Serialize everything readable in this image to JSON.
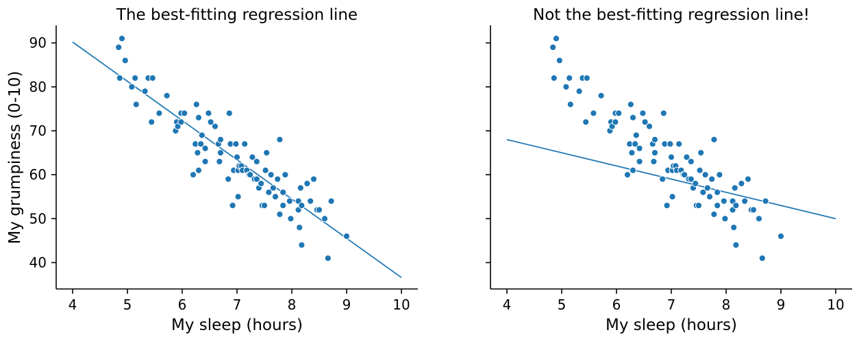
{
  "colors": {
    "accent": "#1f77b4"
  },
  "chart_data": [
    {
      "type": "scatter",
      "title": "The best-fitting regression line",
      "xlabel": "My sleep (hours)",
      "ylabel": "My grumpiness (0-10)",
      "xlim": [
        3.7,
        10.3
      ],
      "ylim": [
        34,
        94
      ],
      "xticks": [
        4,
        5,
        6,
        7,
        8,
        9,
        10
      ],
      "yticks": [
        40,
        50,
        60,
        70,
        80,
        90
      ],
      "grid": false,
      "points": [
        [
          4.84,
          89
        ],
        [
          4.9,
          91
        ],
        [
          4.96,
          86
        ],
        [
          4.86,
          82
        ],
        [
          5.08,
          80
        ],
        [
          5.14,
          82
        ],
        [
          5.16,
          76
        ],
        [
          5.32,
          79
        ],
        [
          5.38,
          82
        ],
        [
          5.44,
          72
        ],
        [
          5.46,
          82
        ],
        [
          5.58,
          74
        ],
        [
          5.72,
          78
        ],
        [
          5.88,
          70
        ],
        [
          5.9,
          72
        ],
        [
          5.92,
          71
        ],
        [
          5.98,
          74
        ],
        [
          5.98,
          72
        ],
        [
          6.04,
          74
        ],
        [
          6.2,
          60
        ],
        [
          6.24,
          67
        ],
        [
          6.26,
          76
        ],
        [
          6.28,
          65
        ],
        [
          6.3,
          73
        ],
        [
          6.3,
          61
        ],
        [
          6.34,
          67
        ],
        [
          6.36,
          69
        ],
        [
          6.42,
          66
        ],
        [
          6.42,
          63
        ],
        [
          6.48,
          74
        ],
        [
          6.52,
          72
        ],
        [
          6.6,
          71
        ],
        [
          6.66,
          67
        ],
        [
          6.68,
          63
        ],
        [
          6.7,
          68
        ],
        [
          6.7,
          65
        ],
        [
          6.84,
          59
        ],
        [
          6.86,
          74
        ],
        [
          6.88,
          67
        ],
        [
          6.92,
          53
        ],
        [
          6.94,
          61
        ],
        [
          6.98,
          67
        ],
        [
          7.0,
          64
        ],
        [
          7.02,
          61
        ],
        [
          7.02,
          55
        ],
        [
          7.04,
          62
        ],
        [
          7.08,
          62
        ],
        [
          7.1,
          61
        ],
        [
          7.14,
          67
        ],
        [
          7.18,
          61
        ],
        [
          7.22,
          60
        ],
        [
          7.24,
          60
        ],
        [
          7.28,
          64
        ],
        [
          7.32,
          59
        ],
        [
          7.36,
          63
        ],
        [
          7.36,
          59
        ],
        [
          7.4,
          57
        ],
        [
          7.44,
          58
        ],
        [
          7.46,
          53
        ],
        [
          7.5,
          53
        ],
        [
          7.52,
          61
        ],
        [
          7.54,
          65
        ],
        [
          7.58,
          56
        ],
        [
          7.62,
          60
        ],
        [
          7.66,
          57
        ],
        [
          7.7,
          55
        ],
        [
          7.74,
          59
        ],
        [
          7.78,
          68
        ],
        [
          7.78,
          51
        ],
        [
          7.84,
          53
        ],
        [
          7.84,
          56
        ],
        [
          7.88,
          60
        ],
        [
          7.96,
          54
        ],
        [
          7.98,
          50
        ],
        [
          8.12,
          54
        ],
        [
          8.12,
          52
        ],
        [
          8.14,
          48
        ],
        [
          8.16,
          57
        ],
        [
          8.18,
          53
        ],
        [
          8.18,
          44
        ],
        [
          8.28,
          58
        ],
        [
          8.34,
          54
        ],
        [
          8.4,
          59
        ],
        [
          8.46,
          52
        ],
        [
          8.5,
          52
        ],
        [
          8.6,
          50
        ],
        [
          8.66,
          41
        ],
        [
          8.72,
          54
        ],
        [
          9.0,
          46
        ]
      ],
      "line": {
        "x": [
          4,
          10
        ],
        "y": [
          90.2,
          36.6
        ]
      }
    },
    {
      "type": "scatter",
      "title": "Not the best-fitting regression line!",
      "xlabel": "My sleep (hours)",
      "ylabel": "",
      "xlim": [
        3.7,
        10.3
      ],
      "ylim": [
        34,
        94
      ],
      "xticks": [
        4,
        5,
        6,
        7,
        8,
        9,
        10
      ],
      "yticks": [
        40,
        50,
        60,
        70,
        80,
        90
      ],
      "show_ytick_labels": false,
      "grid": false,
      "points": [
        [
          4.84,
          89
        ],
        [
          4.9,
          91
        ],
        [
          4.96,
          86
        ],
        [
          4.86,
          82
        ],
        [
          5.08,
          80
        ],
        [
          5.14,
          82
        ],
        [
          5.16,
          76
        ],
        [
          5.32,
          79
        ],
        [
          5.38,
          82
        ],
        [
          5.44,
          72
        ],
        [
          5.46,
          82
        ],
        [
          5.58,
          74
        ],
        [
          5.72,
          78
        ],
        [
          5.88,
          70
        ],
        [
          5.9,
          72
        ],
        [
          5.92,
          71
        ],
        [
          5.98,
          74
        ],
        [
          5.98,
          72
        ],
        [
          6.04,
          74
        ],
        [
          6.2,
          60
        ],
        [
          6.24,
          67
        ],
        [
          6.26,
          76
        ],
        [
          6.28,
          65
        ],
        [
          6.3,
          73
        ],
        [
          6.3,
          61
        ],
        [
          6.34,
          67
        ],
        [
          6.36,
          69
        ],
        [
          6.42,
          66
        ],
        [
          6.42,
          63
        ],
        [
          6.48,
          74
        ],
        [
          6.52,
          72
        ],
        [
          6.6,
          71
        ],
        [
          6.66,
          67
        ],
        [
          6.68,
          63
        ],
        [
          6.7,
          68
        ],
        [
          6.7,
          65
        ],
        [
          6.84,
          59
        ],
        [
          6.86,
          74
        ],
        [
          6.88,
          67
        ],
        [
          6.92,
          53
        ],
        [
          6.94,
          61
        ],
        [
          6.98,
          67
        ],
        [
          7.0,
          64
        ],
        [
          7.02,
          61
        ],
        [
          7.02,
          55
        ],
        [
          7.04,
          62
        ],
        [
          7.08,
          62
        ],
        [
          7.1,
          61
        ],
        [
          7.14,
          67
        ],
        [
          7.18,
          61
        ],
        [
          7.22,
          60
        ],
        [
          7.24,
          60
        ],
        [
          7.28,
          64
        ],
        [
          7.32,
          59
        ],
        [
          7.36,
          63
        ],
        [
          7.36,
          59
        ],
        [
          7.4,
          57
        ],
        [
          7.44,
          58
        ],
        [
          7.46,
          53
        ],
        [
          7.5,
          53
        ],
        [
          7.52,
          61
        ],
        [
          7.54,
          65
        ],
        [
          7.58,
          56
        ],
        [
          7.62,
          60
        ],
        [
          7.66,
          57
        ],
        [
          7.7,
          55
        ],
        [
          7.74,
          59
        ],
        [
          7.78,
          68
        ],
        [
          7.78,
          51
        ],
        [
          7.84,
          53
        ],
        [
          7.84,
          56
        ],
        [
          7.88,
          60
        ],
        [
          7.96,
          54
        ],
        [
          7.98,
          50
        ],
        [
          8.12,
          54
        ],
        [
          8.12,
          52
        ],
        [
          8.14,
          48
        ],
        [
          8.16,
          57
        ],
        [
          8.18,
          53
        ],
        [
          8.18,
          44
        ],
        [
          8.28,
          58
        ],
        [
          8.34,
          54
        ],
        [
          8.4,
          59
        ],
        [
          8.46,
          52
        ],
        [
          8.5,
          52
        ],
        [
          8.6,
          50
        ],
        [
          8.66,
          41
        ],
        [
          8.72,
          54
        ],
        [
          9.0,
          46
        ]
      ],
      "line": {
        "x": [
          4,
          10
        ],
        "y": [
          68.0,
          50.0
        ]
      }
    }
  ]
}
